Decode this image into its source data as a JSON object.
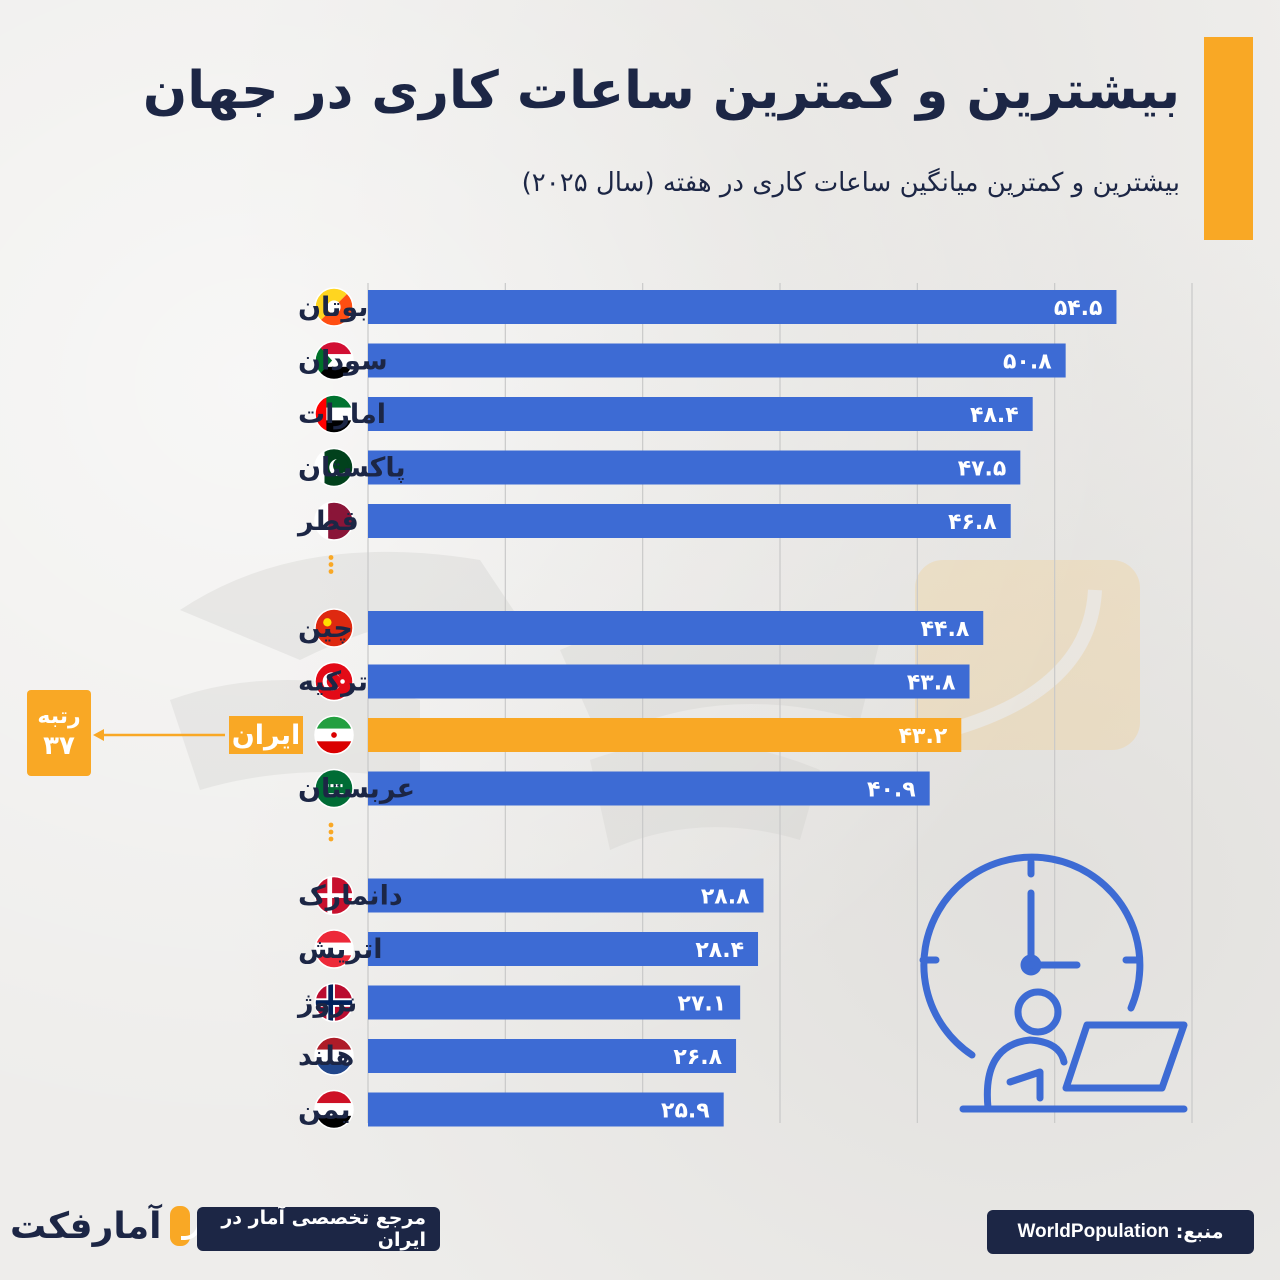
{
  "title": "بیشترین و کمترین ساعات کاری در جهان",
  "subtitle": "بیشترین و کمترین میانگین ساعات کاری در هفته (سال ۲۰۲۵)",
  "rank_callout": {
    "line1": "رتبه",
    "line2": "۳۷"
  },
  "brand": {
    "name": "آمارفکت",
    "tagline": "مرجع تخصصی آمار در ایران"
  },
  "source": {
    "label": "منبع:",
    "name": "WorldPopulation"
  },
  "colors": {
    "bar": "#3d6bd4",
    "highlight": "#f9a825",
    "text": "#1c2645",
    "accent": "#f9a825"
  },
  "icons": [
    "clock-person-laptop-icon",
    "flag-icon",
    "watermark-logo"
  ],
  "chart_data": {
    "type": "bar",
    "orientation": "horizontal",
    "xlim": [
      0,
      60
    ],
    "grid": true,
    "groups": [
      {
        "categories": [
          "بوتان",
          "سودان",
          "امارات",
          "پاکستان",
          "قطر"
        ],
        "flags": [
          "bhutan",
          "sudan",
          "uae",
          "pakistan",
          "qatar"
        ],
        "values": [
          54.5,
          50.8,
          48.4,
          47.5,
          46.8
        ],
        "labels": [
          "۵۴.۵",
          "۵۰.۸",
          "۴۸.۴",
          "۴۷.۵",
          "۴۶.۸"
        ]
      },
      {
        "categories": [
          "چین",
          "ترکیه",
          "ایران",
          "عربستان"
        ],
        "flags": [
          "china",
          "turkey",
          "iran",
          "saudi"
        ],
        "values": [
          44.8,
          43.8,
          43.2,
          40.9
        ],
        "labels": [
          "۴۴.۸",
          "۴۳.۸",
          "۴۳.۲",
          "۴۰.۹"
        ],
        "highlight": "ایران"
      },
      {
        "categories": [
          "دانمارک",
          "اتریش",
          "نروژ",
          "هلند",
          "یمن"
        ],
        "flags": [
          "denmark",
          "austria",
          "norway",
          "netherlands",
          "yemen"
        ],
        "values": [
          28.8,
          28.4,
          27.1,
          26.8,
          25.9
        ],
        "labels": [
          "۲۸.۸",
          "۲۸.۴",
          "۲۷.۱",
          "۲۶.۸",
          "۲۵.۹"
        ]
      }
    ]
  }
}
